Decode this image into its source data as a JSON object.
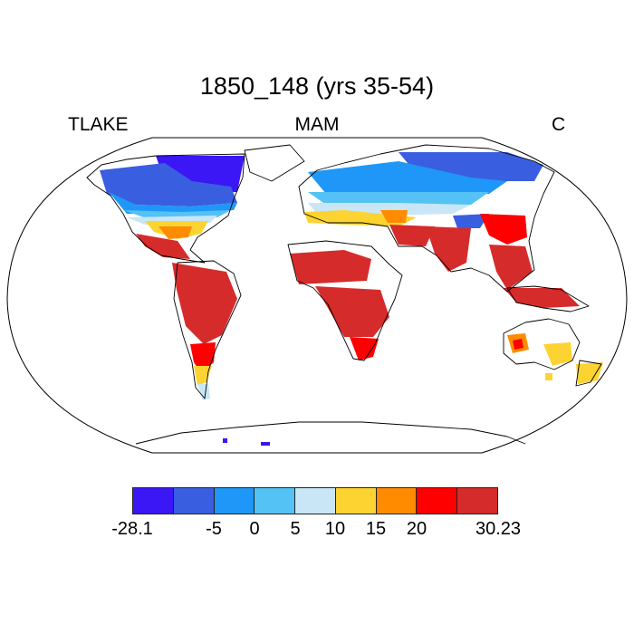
{
  "title": "1850_148 (yrs 35-54)",
  "left_label": "TLAKE",
  "center_label": "MAM",
  "right_label": "C",
  "colorbar": {
    "colors": [
      "#3a17f4",
      "#3a5ee0",
      "#1e97f8",
      "#54c2f4",
      "#c8e6f6",
      "#fdd331",
      "#ff8c00",
      "#ff0000",
      "#d62b2b"
    ],
    "labels": [
      "-28.1",
      "-5",
      "0",
      "5",
      "10",
      "15",
      "20",
      "30.23"
    ]
  }
}
